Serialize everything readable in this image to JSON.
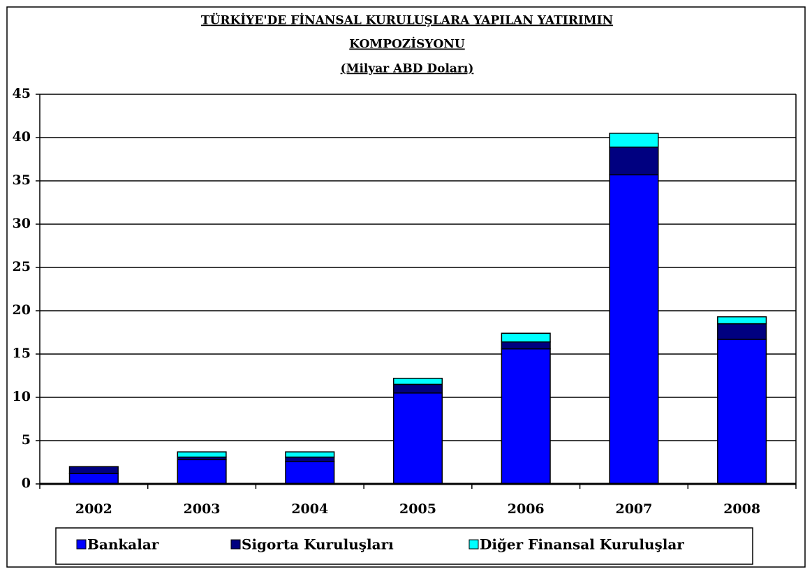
{
  "chart_data": {
    "type": "stacked_bar",
    "title": [
      "TÜRKİYE'DE FİNANSAL KURULUŞLARA YAPILAN  YATIRIMIN",
      "KOMPOZİSYONU"
    ],
    "subtitle": "(Milyar ABD Doları)",
    "categories": [
      "2002",
      "2003",
      "2004",
      "2005",
      "2006",
      "2007",
      "2008"
    ],
    "series": [
      {
        "name": "Bankalar",
        "color": "#0000ff",
        "values": [
          1.2,
          2.8,
          2.6,
          10.5,
          15.6,
          35.7,
          16.7
        ]
      },
      {
        "name": "Sigorta Kuruluşları",
        "color": "#000080",
        "values": [
          0.8,
          0.3,
          0.5,
          1.0,
          0.8,
          3.2,
          1.8
        ]
      },
      {
        "name": "Diğer Finansal Kuruluşlar",
        "color": "#00ffff",
        "values": [
          0,
          0.6,
          0.6,
          0.7,
          1.0,
          1.6,
          0.8
        ]
      }
    ],
    "ylim": [
      0,
      45
    ],
    "yticks": [
      0,
      5,
      10,
      15,
      20,
      25,
      30,
      35,
      40,
      45
    ],
    "grid": true,
    "legend": "bottom"
  }
}
